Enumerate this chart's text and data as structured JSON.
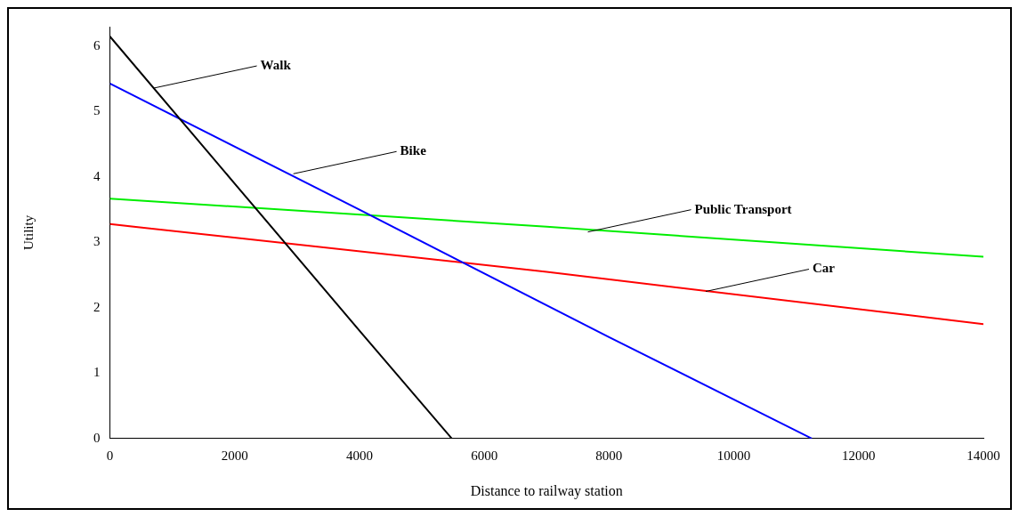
{
  "chart_data": {
    "type": "line",
    "xlabel": "Distance to railway station",
    "ylabel": "Utility",
    "xlim": [
      0,
      14000
    ],
    "ylim": [
      0,
      6.3
    ],
    "xticks": [
      0,
      2000,
      4000,
      6000,
      8000,
      10000,
      12000,
      14000
    ],
    "yticks": [
      0,
      1,
      2,
      3,
      4,
      5,
      6
    ],
    "grid": false,
    "legend": false,
    "marker": "none",
    "line_style": "solid",
    "series": [
      {
        "color": "#000000",
        "x": [
          0,
          2000,
          4000,
          5480
        ],
        "values": [
          6.15,
          3.9,
          1.65,
          0
        ]
      },
      {
        "color": "#0000ff",
        "x": [
          0,
          4000,
          8000,
          11250
        ],
        "values": [
          5.43,
          3.5,
          1.55,
          0
        ]
      },
      {
        "color": "#00ee00",
        "x": [
          0,
          7000,
          14000
        ],
        "values": [
          3.67,
          3.24,
          2.78
        ]
      },
      {
        "color": "#ff0000",
        "x": [
          0,
          7000,
          14000
        ],
        "values": [
          3.28,
          2.55,
          1.75
        ]
      }
    ],
    "annotations": [
      {
        "text": "Walk",
        "x": 700,
        "y": 5.36
      },
      {
        "text": "Bike",
        "x": 2940,
        "y": 4.05
      },
      {
        "text": "Public Transport",
        "x": 7660,
        "y": 3.16
      },
      {
        "text": "Car",
        "x": 9550,
        "y": 2.25
      }
    ]
  }
}
